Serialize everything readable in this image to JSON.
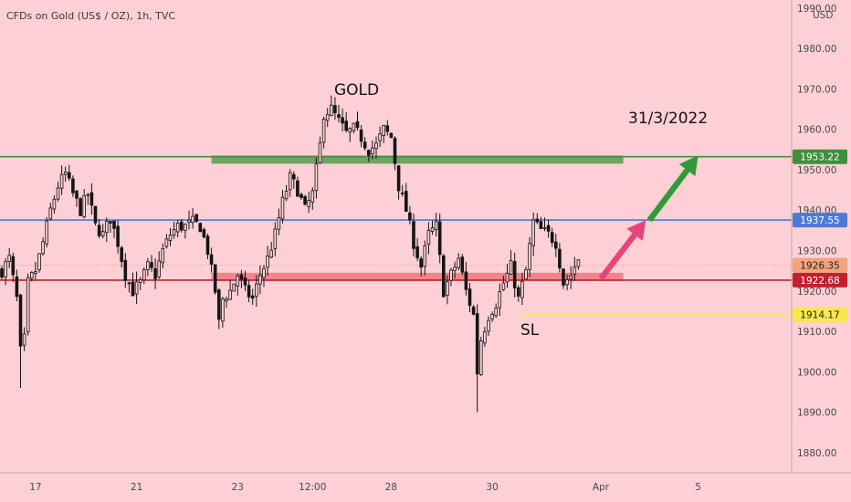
{
  "header": {
    "symbol_title": "CFDs on Gold (US$ / OZ), 1h, TVC",
    "currency": "USD"
  },
  "colors": {
    "background": "#fdd0d6",
    "candle": "#141414",
    "resistance_line": "#3f8f3c",
    "resistance_zone": "#5f9e57",
    "mid_line": "#4b7bd6",
    "support_line": "#c2202e",
    "support_zone": "#f07c85",
    "sl_line": "#f7e84c",
    "sl_label": "#e0407d",
    "arrow_pink": "#e8447c",
    "arrow_green": "#2f9a3a"
  },
  "annotations": {
    "gold_label": "GOLD",
    "date_label": "31/3/2022",
    "sl_label": "SL"
  },
  "price_tags": [
    {
      "value": 1953.22,
      "text": "1953.22",
      "bg": "#3f8f3c",
      "fg": "#ffffff"
    },
    {
      "value": 1937.55,
      "text": "1937.55",
      "bg": "#4b7bd6",
      "fg": "#ffffff"
    },
    {
      "value": 1926.35,
      "text": "1926.35",
      "bg": "#f3a27e",
      "fg": "#222222"
    },
    {
      "value": 1922.68,
      "text": "1922.68",
      "bg": "#c2202e",
      "fg": "#ffffff"
    },
    {
      "value": 1914.17,
      "text": "1914.17",
      "bg": "#f7e84c",
      "fg": "#222222"
    }
  ],
  "chart_data": {
    "type": "candlestick",
    "title": "CFDs on Gold (US$ / OZ), 1h, TVC",
    "ylabel": "USD",
    "ylim": [
      1875,
      1992
    ],
    "y_ticks": [
      1880,
      1890,
      1900,
      1910,
      1920,
      1930,
      1940,
      1950,
      1960,
      1970,
      1980,
      1990
    ],
    "y_tick_labels": [
      "1880.00",
      "1890.00",
      "1900.00",
      "1910.00",
      "1920.00",
      "1930.00",
      "1940.00",
      "1950.00",
      "1960.00",
      "1970.00",
      "1980.00",
      "1990.00"
    ],
    "x_ticks": [
      {
        "label": "17",
        "index": 9
      },
      {
        "label": "21",
        "index": 36
      },
      {
        "label": "23",
        "index": 63
      },
      {
        "label": "12:00",
        "index": 83
      },
      {
        "label": "28",
        "index": 104
      },
      {
        "label": "30",
        "index": 131
      },
      {
        "label": "Apr",
        "index": 160
      },
      {
        "label": "5",
        "index": 186
      }
    ],
    "x_count": 209,
    "close_path": [
      [
        0,
        1925
      ],
      [
        2,
        1928
      ],
      [
        4,
        1918
      ],
      [
        5,
        1905
      ],
      [
        6,
        1908
      ],
      [
        7,
        1922
      ],
      [
        9,
        1925
      ],
      [
        11,
        1932
      ],
      [
        13,
        1940
      ],
      [
        15,
        1946
      ],
      [
        17,
        1949
      ],
      [
        19,
        1944
      ],
      [
        21,
        1940
      ],
      [
        23,
        1944
      ],
      [
        25,
        1936
      ],
      [
        27,
        1934
      ],
      [
        29,
        1938
      ],
      [
        31,
        1932
      ],
      [
        33,
        1924
      ],
      [
        35,
        1920
      ],
      [
        37,
        1922
      ],
      [
        39,
        1926
      ],
      [
        41,
        1924
      ],
      [
        43,
        1930
      ],
      [
        45,
        1934
      ],
      [
        47,
        1936
      ],
      [
        49,
        1936
      ],
      [
        51,
        1937
      ],
      [
        53,
        1936
      ],
      [
        55,
        1930
      ],
      [
        57,
        1920
      ],
      [
        58,
        1912
      ],
      [
        59,
        1918
      ],
      [
        61,
        1920
      ],
      [
        63,
        1924
      ],
      [
        65,
        1920
      ],
      [
        67,
        1918
      ],
      [
        69,
        1924
      ],
      [
        71,
        1928
      ],
      [
        73,
        1934
      ],
      [
        75,
        1942
      ],
      [
        77,
        1948
      ],
      [
        79,
        1945
      ],
      [
        81,
        1940
      ],
      [
        83,
        1944
      ],
      [
        85,
        1956
      ],
      [
        86,
        1964
      ],
      [
        88,
        1965
      ],
      [
        90,
        1962
      ],
      [
        92,
        1959
      ],
      [
        94,
        1960
      ],
      [
        96,
        1958
      ],
      [
        98,
        1955
      ],
      [
        100,
        1956
      ],
      [
        102,
        1960
      ],
      [
        104,
        1958
      ],
      [
        106,
        1946
      ],
      [
        108,
        1940
      ],
      [
        110,
        1932
      ],
      [
        112,
        1926
      ],
      [
        114,
        1934
      ],
      [
        116,
        1936
      ],
      [
        118,
        1920
      ],
      [
        120,
        1924
      ],
      [
        122,
        1928
      ],
      [
        124,
        1920
      ],
      [
        126,
        1914
      ],
      [
        127,
        1900
      ],
      [
        128,
        1908
      ],
      [
        130,
        1914
      ],
      [
        132,
        1917
      ],
      [
        134,
        1922
      ],
      [
        136,
        1926
      ],
      [
        138,
        1918
      ],
      [
        140,
        1925
      ],
      [
        142,
        1937
      ],
      [
        144,
        1935
      ],
      [
        146,
        1934
      ],
      [
        148,
        1932
      ],
      [
        150,
        1922
      ],
      [
        152,
        1924
      ],
      [
        154,
        1928
      ]
    ],
    "horizontal_levels": [
      {
        "value": 1953.22,
        "label": "1953.22"
      },
      {
        "value": 1937.55,
        "label": "1937.55"
      },
      {
        "value": 1922.68,
        "label": "1922.68"
      },
      {
        "value": 1914.17,
        "label": "1914.17"
      },
      {
        "value": 1926.35,
        "label": "1926.35"
      }
    ],
    "zones": [
      {
        "name": "resistance",
        "x_from_index": 56,
        "x_to_index": 166,
        "y_from": 1951.5,
        "y_to": 1953.5
      },
      {
        "name": "support",
        "x_from_index": 56,
        "x_to_index": 166,
        "y_from": 1922.5,
        "y_to": 1924.5
      }
    ],
    "arrows": [
      {
        "name": "arrow-up-1",
        "from_index": 160,
        "from_value": 1923,
        "to_index": 172,
        "to_value": 1937.5
      },
      {
        "name": "arrow-up-2",
        "from_index": 173,
        "from_value": 1937.5,
        "to_index": 186,
        "to_value": 1953.5
      }
    ],
    "grid": false
  }
}
